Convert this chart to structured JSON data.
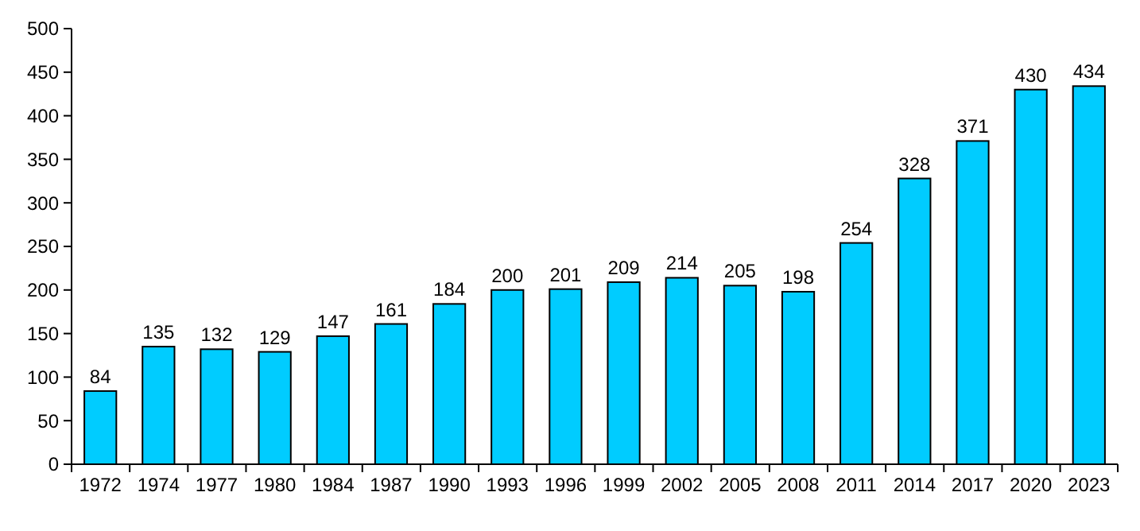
{
  "chart_data": {
    "type": "bar",
    "categories": [
      "1972",
      "1974",
      "1977",
      "1980",
      "1984",
      "1987",
      "1990",
      "1993",
      "1996",
      "1999",
      "2002",
      "2005",
      "2008",
      "2011",
      "2014",
      "2017",
      "2020",
      "2023"
    ],
    "values": [
      84,
      135,
      132,
      129,
      147,
      161,
      184,
      200,
      201,
      209,
      214,
      205,
      198,
      254,
      328,
      371,
      430,
      434
    ],
    "color": "#00ccff",
    "ylim": [
      0,
      500
    ],
    "yticks": [
      0,
      50,
      100,
      150,
      200,
      250,
      300,
      350,
      400,
      450,
      500
    ],
    "data_labels": true,
    "grid": false
  }
}
